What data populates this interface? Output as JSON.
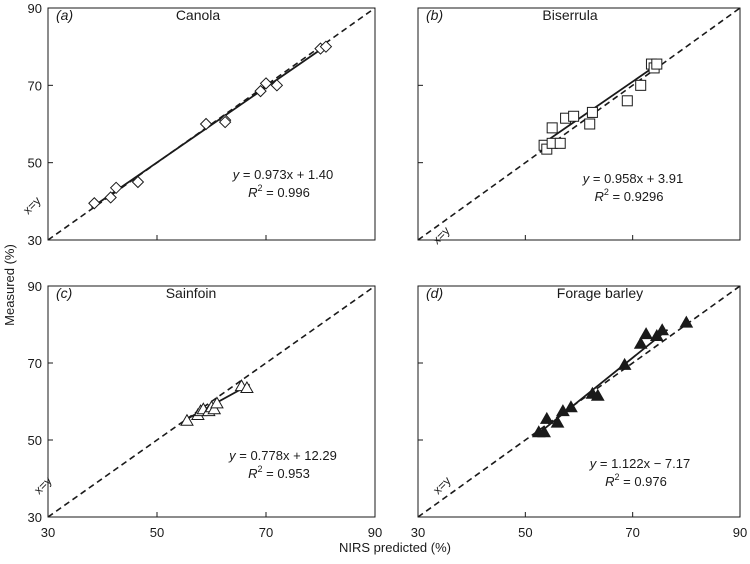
{
  "axes": {
    "xlabel": "NIRS predicted (%)",
    "ylabel": "Measured (%)",
    "xlim": [
      30,
      90
    ],
    "ylim": [
      30,
      90
    ],
    "ticks": [
      "30",
      "50",
      "70",
      "90"
    ]
  },
  "identity_label": "x=y",
  "chart_data": [
    {
      "type": "scatter",
      "panel": "(a)",
      "title": "Canola",
      "marker": "open-diamond",
      "equation": {
        "y": "y",
        "rest": " = 0.973x + 1.40",
        "r": "R",
        "sup": "2",
        "r2": " = 0.996"
      },
      "fit": {
        "slope": 0.973,
        "intercept": 1.4
      },
      "fit_range": [
        38,
        81
      ],
      "points": [
        {
          "x": 38.5,
          "y": 39.5
        },
        {
          "x": 41.5,
          "y": 41.0
        },
        {
          "x": 42.5,
          "y": 43.5
        },
        {
          "x": 46.5,
          "y": 45.0
        },
        {
          "x": 59.0,
          "y": 60.0
        },
        {
          "x": 62.5,
          "y": 61.0
        },
        {
          "x": 62.5,
          "y": 60.5
        },
        {
          "x": 69.0,
          "y": 68.5
        },
        {
          "x": 70.0,
          "y": 70.5
        },
        {
          "x": 72.0,
          "y": 70.0
        },
        {
          "x": 80.0,
          "y": 79.5
        },
        {
          "x": 81.0,
          "y": 80.0
        }
      ]
    },
    {
      "type": "scatter",
      "panel": "(b)",
      "title": "Biserrula",
      "marker": "open-square",
      "equation": {
        "y": "y",
        "rest": " = 0.958x + 3.91",
        "r": "R",
        "sup": "2",
        "r2": " = 0.9296"
      },
      "fit": {
        "slope": 0.958,
        "intercept": 3.91
      },
      "fit_range": [
        53,
        75
      ],
      "points": [
        {
          "x": 53.5,
          "y": 54.5
        },
        {
          "x": 54.0,
          "y": 53.5
        },
        {
          "x": 55.0,
          "y": 55.0
        },
        {
          "x": 55.0,
          "y": 59.0
        },
        {
          "x": 56.5,
          "y": 55.0
        },
        {
          "x": 57.5,
          "y": 61.5
        },
        {
          "x": 59.0,
          "y": 62.0
        },
        {
          "x": 62.0,
          "y": 60.0
        },
        {
          "x": 62.5,
          "y": 63.0
        },
        {
          "x": 69.0,
          "y": 66.0
        },
        {
          "x": 71.5,
          "y": 70.0
        },
        {
          "x": 73.5,
          "y": 75.5
        },
        {
          "x": 74.0,
          "y": 74.5
        },
        {
          "x": 74.5,
          "y": 75.5
        }
      ]
    },
    {
      "type": "scatter",
      "panel": "(c)",
      "title": "Sainfoin",
      "marker": "open-triangle",
      "equation": {
        "y": "y",
        "rest": " = 0.778x + 12.29",
        "r": "R",
        "sup": "2",
        "r2": " = 0.953"
      },
      "fit": {
        "slope": 0.778,
        "intercept": 12.29
      },
      "fit_range": [
        55,
        67
      ],
      "points": [
        {
          "x": 55.5,
          "y": 55.0
        },
        {
          "x": 57.5,
          "y": 56.5
        },
        {
          "x": 58.0,
          "y": 57.5
        },
        {
          "x": 58.5,
          "y": 58.0
        },
        {
          "x": 59.5,
          "y": 57.5
        },
        {
          "x": 60.0,
          "y": 58.5
        },
        {
          "x": 60.5,
          "y": 58.0
        },
        {
          "x": 61.0,
          "y": 59.5
        },
        {
          "x": 65.5,
          "y": 64.0
        },
        {
          "x": 66.5,
          "y": 63.5
        }
      ]
    },
    {
      "type": "scatter",
      "panel": "(d)",
      "title": "Forage barley",
      "marker": "filled-triangle",
      "equation": {
        "y": "y",
        "rest": " = 1.122x − 7.17",
        "r": "R",
        "sup": "2",
        "r2": " = 0.976"
      },
      "fit": {
        "slope": 1.122,
        "intercept": -7.17
      },
      "fit_range": [
        52,
        76.5
      ],
      "points": [
        {
          "x": 52.5,
          "y": 52.0
        },
        {
          "x": 53.5,
          "y": 52.0
        },
        {
          "x": 54.0,
          "y": 55.5
        },
        {
          "x": 56.0,
          "y": 54.5
        },
        {
          "x": 57.0,
          "y": 57.5
        },
        {
          "x": 58.5,
          "y": 58.5
        },
        {
          "x": 62.5,
          "y": 62.0
        },
        {
          "x": 63.5,
          "y": 61.5
        },
        {
          "x": 68.5,
          "y": 69.5
        },
        {
          "x": 71.5,
          "y": 75.0
        },
        {
          "x": 72.5,
          "y": 77.5
        },
        {
          "x": 74.5,
          "y": 77.0
        },
        {
          "x": 75.5,
          "y": 78.5
        },
        {
          "x": 80.0,
          "y": 80.5
        }
      ]
    }
  ]
}
